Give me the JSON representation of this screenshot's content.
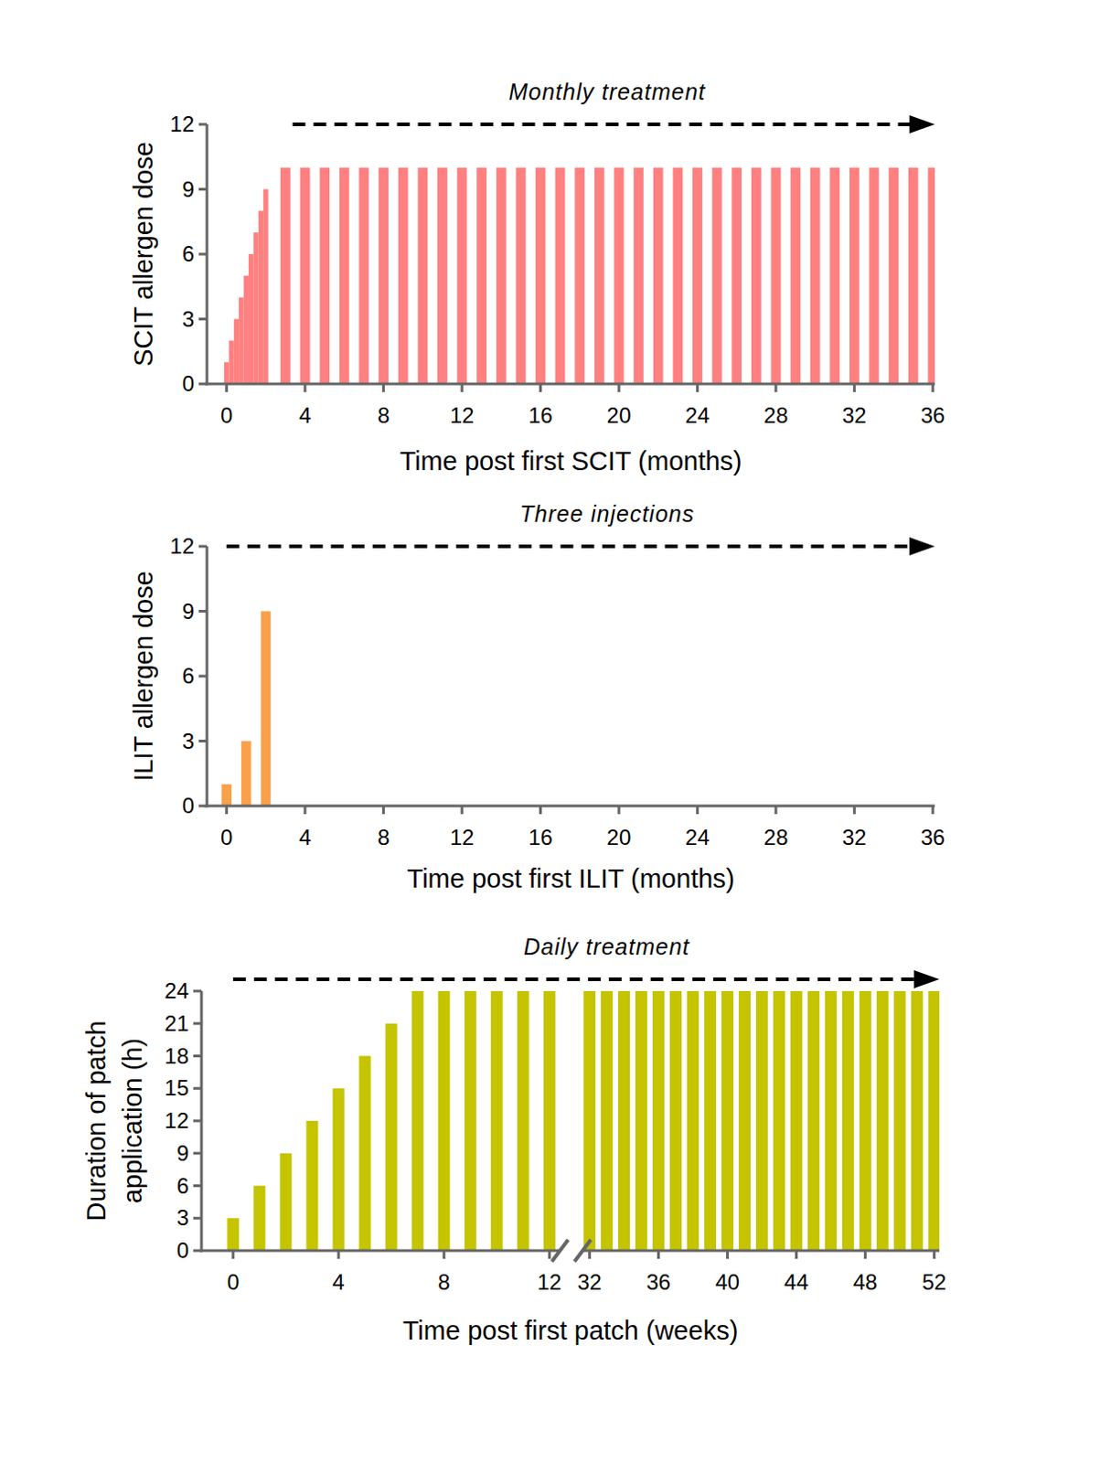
{
  "chart_data": [
    {
      "type": "bar",
      "title": "Monthly treatment",
      "x_label": "Time post first SCIT (months)",
      "y_label": "SCIT allergen dose",
      "x": [
        0,
        0.25,
        0.5,
        0.75,
        1,
        1.25,
        1.5,
        1.75,
        2,
        3,
        4,
        5,
        6,
        7,
        8,
        9,
        10,
        11,
        12,
        13,
        14,
        15,
        16,
        17,
        18,
        19,
        20,
        21,
        22,
        23,
        24,
        25,
        26,
        27,
        28,
        29,
        30,
        31,
        32,
        33,
        34,
        35,
        36
      ],
      "values": [
        1,
        2,
        3,
        4,
        5,
        6,
        7,
        8,
        9,
        10,
        10,
        10,
        10,
        10,
        10,
        10,
        10,
        10,
        10,
        10,
        10,
        10,
        10,
        10,
        10,
        10,
        10,
        10,
        10,
        10,
        10,
        10,
        10,
        10,
        10,
        10,
        10,
        10,
        10,
        10,
        10,
        10,
        10
      ],
      "color": "#ff8080",
      "xlim": [
        -1,
        36.1
      ],
      "ylim": [
        0,
        12
      ],
      "xticks": [
        0,
        4,
        8,
        12,
        16,
        20,
        24,
        28,
        32,
        36
      ],
      "yticks": [
        0,
        3,
        6,
        9,
        12
      ],
      "grid": false
    },
    {
      "type": "bar",
      "title": "Three injections",
      "x_label": "Time post first ILIT (months)",
      "y_label": "ILIT allergen dose",
      "x": [
        0,
        1,
        2
      ],
      "values": [
        1,
        3,
        9
      ],
      "color": "#f9a04a",
      "xlim": [
        -1,
        36.1
      ],
      "ylim": [
        0,
        12
      ],
      "xticks": [
        0,
        4,
        8,
        12,
        16,
        20,
        24,
        28,
        32,
        36
      ],
      "yticks": [
        0,
        3,
        6,
        9,
        12
      ],
      "grid": false
    },
    {
      "type": "bar",
      "title": "Daily treatment",
      "x_label": "Time post first patch (weeks)",
      "y_label": "Duration of patch\napplication (h)",
      "x": [
        0,
        1,
        2,
        3,
        4,
        5,
        6,
        7,
        8,
        9,
        10,
        11,
        12,
        32,
        33,
        34,
        35,
        36,
        37,
        38,
        39,
        40,
        41,
        42,
        43,
        44,
        45,
        46,
        47,
        48,
        49,
        50,
        51,
        52
      ],
      "values": [
        3,
        6,
        9,
        12,
        15,
        18,
        21,
        24,
        24,
        24,
        24,
        24,
        24,
        24,
        24,
        24,
        24,
        24,
        24,
        24,
        24,
        24,
        24,
        24,
        24,
        24,
        24,
        24,
        24,
        24,
        24,
        24,
        24,
        24
      ],
      "color": "#c4c400",
      "xlim": [
        [
          -1.2,
          12.4
        ],
        [
          31.6,
          52.3
        ]
      ],
      "ylim": [
        0,
        24
      ],
      "xticks": [
        0,
        4,
        8,
        12,
        32,
        36,
        40,
        44,
        48,
        52
      ],
      "yticks": [
        0,
        3,
        6,
        9,
        12,
        15,
        18,
        21,
        24
      ],
      "grid": false
    }
  ]
}
